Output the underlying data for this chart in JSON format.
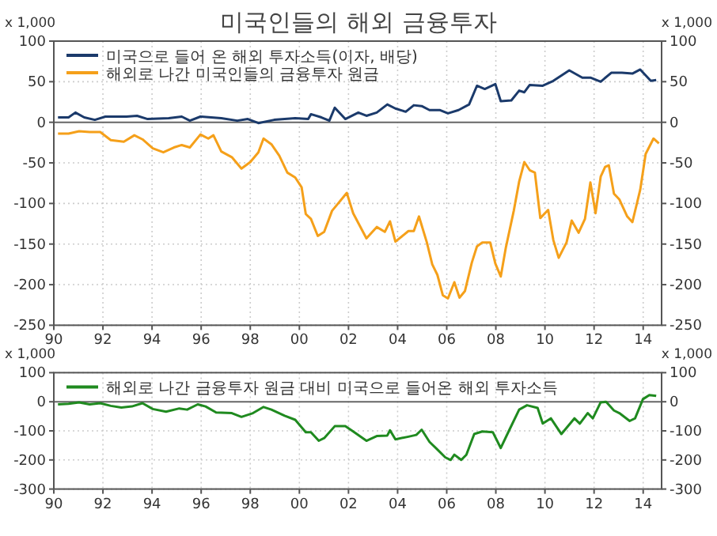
{
  "chart_data": [
    {
      "type": "line",
      "title": "미국인들의 해외 금융투자",
      "ylabel": "x 1,000",
      "y2label": "x 1,000",
      "legend": "top left",
      "grid": true,
      "xlim": [
        1990,
        2014.75
      ],
      "xticks": [
        {
          "value": 1990,
          "label": "90"
        },
        {
          "value": 1992,
          "label": "92"
        },
        {
          "value": 1994,
          "label": "94"
        },
        {
          "value": 1996,
          "label": "96"
        },
        {
          "value": 1998,
          "label": "98"
        },
        {
          "value": 2000,
          "label": "00"
        },
        {
          "value": 2002,
          "label": "02"
        },
        {
          "value": 2004,
          "label": "04"
        },
        {
          "value": 2006,
          "label": "06"
        },
        {
          "value": 2008,
          "label": "08"
        },
        {
          "value": 2010,
          "label": "10"
        },
        {
          "value": 2012,
          "label": "12"
        },
        {
          "value": 2014,
          "label": "14"
        }
      ],
      "ylim": [
        -250,
        100
      ],
      "yticks": [
        -250,
        -200,
        -150,
        -100,
        -50,
        0,
        50,
        100
      ],
      "y2lim": [
        -250,
        100
      ],
      "y2ticks": [
        -250,
        -200,
        -150,
        -100,
        -50,
        0,
        50,
        100
      ],
      "series": [
        {
          "name": "미국으로 들어 온 해외 투자소득(이자, 배당)",
          "color": "#1b3a6b",
          "x": [
            1990.17,
            1990.6,
            1990.88,
            1991.24,
            1991.67,
            1992.1,
            1992.96,
            1993.39,
            1993.82,
            1994.68,
            1995.21,
            1995.54,
            1995.97,
            1996.82,
            1997.47,
            1997.9,
            1998.33,
            1998.97,
            1999.83,
            2000.36,
            2000.47,
            2000.9,
            2001.22,
            2001.44,
            2001.87,
            2002.4,
            2002.73,
            2003.15,
            2003.58,
            2003.91,
            2004.33,
            2004.66,
            2004.98,
            2005.3,
            2005.73,
            2006.05,
            2006.48,
            2006.91,
            2007.23,
            2007.55,
            2007.98,
            2008.2,
            2008.63,
            2008.95,
            2009.16,
            2009.38,
            2009.91,
            2010.34,
            2010.99,
            2011.52,
            2011.85,
            2012.27,
            2012.7,
            2013.13,
            2013.56,
            2013.88,
            2014.31,
            2014.53
          ],
          "values": [
            6,
            6,
            12,
            6,
            3,
            7,
            7,
            8,
            4,
            5,
            7,
            2,
            7,
            5,
            2,
            4,
            -1,
            3,
            5,
            4,
            10,
            6,
            2,
            18,
            4,
            12,
            8,
            12,
            22,
            17,
            13,
            21,
            20,
            15,
            15,
            11,
            15,
            22,
            45,
            41,
            47,
            26,
            27,
            39,
            37,
            46,
            45,
            51,
            64,
            55,
            55,
            50,
            61,
            61,
            60,
            65,
            51,
            52
          ]
        },
        {
          "name": "해외로 나간 미국인들의 금융투자 원금",
          "color": "#f5a01a",
          "x": [
            1990.17,
            1990.6,
            1991.03,
            1991.46,
            1991.89,
            1992.32,
            1992.85,
            1993.28,
            1993.61,
            1994.03,
            1994.46,
            1994.89,
            1995.21,
            1995.54,
            1995.97,
            1996.29,
            1996.5,
            1996.82,
            1997.25,
            1997.64,
            1998.0,
            1998.33,
            1998.54,
            1998.86,
            1999.18,
            1999.51,
            1999.83,
            2000.09,
            2000.26,
            2000.47,
            2000.75,
            2001.01,
            2001.33,
            2001.55,
            2001.93,
            2002.19,
            2002.73,
            2003.15,
            2003.48,
            2003.69,
            2003.91,
            2004.44,
            2004.66,
            2004.87,
            2005.19,
            2005.41,
            2005.62,
            2005.84,
            2006.05,
            2006.31,
            2006.52,
            2006.74,
            2007.02,
            2007.23,
            2007.45,
            2007.77,
            2007.98,
            2008.2,
            2008.41,
            2008.73,
            2008.95,
            2009.16,
            2009.38,
            2009.59,
            2009.81,
            2010.13,
            2010.34,
            2010.56,
            2010.88,
            2011.09,
            2011.37,
            2011.63,
            2011.85,
            2012.06,
            2012.27,
            2012.45,
            2012.6,
            2012.81,
            2013.03,
            2013.35,
            2013.56,
            2013.88,
            2014.1,
            2014.42,
            2014.64
          ],
          "values": [
            -14,
            -14,
            -11,
            -12,
            -12,
            -22,
            -24,
            -16,
            -21,
            -32,
            -37,
            -31,
            -28,
            -31,
            -15,
            -20,
            -16,
            -36,
            -43,
            -57,
            -49,
            -37,
            -20,
            -27,
            -41,
            -62,
            -68,
            -80,
            -113,
            -119,
            -140,
            -135,
            -109,
            -101,
            -87,
            -112,
            -143,
            -129,
            -135,
            -122,
            -147,
            -134,
            -134,
            -116,
            -148,
            -175,
            -188,
            -213,
            -217,
            -197,
            -216,
            -208,
            -173,
            -153,
            -148,
            -148,
            -174,
            -190,
            -154,
            -109,
            -73,
            -49,
            -59,
            -62,
            -118,
            -108,
            -145,
            -167,
            -148,
            -121,
            -136,
            -119,
            -74,
            -112,
            -67,
            -55,
            -53,
            -88,
            -95,
            -116,
            -123,
            -83,
            -39,
            -20,
            -26
          ]
        }
      ]
    },
    {
      "type": "line",
      "legend": "top left",
      "grid": true,
      "ylabel": "x 1,000",
      "y2label": "x 1,000",
      "xlim": [
        1990,
        2014.75
      ],
      "xticks": [
        {
          "value": 1990,
          "label": "90"
        },
        {
          "value": 1992,
          "label": "92"
        },
        {
          "value": 1994,
          "label": "94"
        },
        {
          "value": 1996,
          "label": "96"
        },
        {
          "value": 1998,
          "label": "98"
        },
        {
          "value": 2000,
          "label": "00"
        },
        {
          "value": 2002,
          "label": "02"
        },
        {
          "value": 2004,
          "label": "04"
        },
        {
          "value": 2006,
          "label": "06"
        },
        {
          "value": 2008,
          "label": "08"
        },
        {
          "value": 2010,
          "label": "10"
        },
        {
          "value": 2012,
          "label": "12"
        },
        {
          "value": 2014,
          "label": "14"
        }
      ],
      "ylim": [
        -300,
        100
      ],
      "yticks": [
        -300,
        -200,
        -100,
        0,
        100
      ],
      "y2lim": [
        -300,
        100
      ],
      "y2ticks": [
        -300,
        -200,
        -100,
        0,
        100
      ],
      "series": [
        {
          "name": "해외로 나간 금융투자 원금 대비 미국으로 들어온 해외 투자소득",
          "color": "#1f8a1f",
          "x": [
            1990.17,
            1990.6,
            1991.03,
            1991.46,
            1991.89,
            1992.32,
            1992.75,
            1993.18,
            1993.61,
            1994.03,
            1994.57,
            1995.11,
            1995.43,
            1995.86,
            1996.18,
            1996.61,
            1997.25,
            1997.64,
            1998.11,
            1998.54,
            1998.86,
            1999.4,
            1999.83,
            2000.26,
            2000.47,
            2000.79,
            2001.01,
            2001.44,
            2001.87,
            2002.19,
            2002.73,
            2003.15,
            2003.58,
            2003.69,
            2003.91,
            2004.44,
            2004.76,
            2004.98,
            2005.3,
            2005.62,
            2005.94,
            2006.16,
            2006.31,
            2006.59,
            2006.8,
            2007.12,
            2007.45,
            2007.88,
            2008.2,
            2008.52,
            2008.95,
            2009.27,
            2009.7,
            2009.91,
            2010.24,
            2010.67,
            2011.2,
            2011.42,
            2011.74,
            2011.95,
            2012.27,
            2012.49,
            2012.81,
            2013.03,
            2013.45,
            2013.67,
            2013.99,
            2014.25,
            2014.53
          ],
          "values": [
            -9,
            -7,
            -2,
            -9,
            -5,
            -14,
            -20,
            -16,
            -5,
            -25,
            -34,
            -23,
            -27,
            -9,
            -16,
            -37,
            -39,
            -52,
            -39,
            -18,
            -27,
            -48,
            -62,
            -105,
            -105,
            -134,
            -125,
            -84,
            -84,
            -102,
            -134,
            -118,
            -116,
            -98,
            -129,
            -120,
            -114,
            -96,
            -138,
            -164,
            -191,
            -200,
            -182,
            -200,
            -182,
            -111,
            -102,
            -105,
            -159,
            -102,
            -27,
            -12,
            -21,
            -75,
            -57,
            -111,
            -57,
            -75,
            -39,
            -57,
            -2,
            0,
            -30,
            -39,
            -66,
            -57,
            9,
            23,
            20
          ]
        }
      ]
    }
  ]
}
